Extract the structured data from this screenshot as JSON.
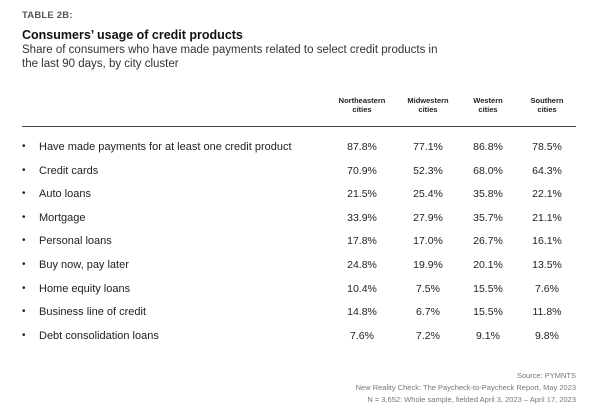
{
  "table_label": "TABLE 2B:",
  "title": "Consumers’ usage of credit products",
  "subtitle": "Share of consumers who have made payments related to select credit products in the last 90 days, by city cluster",
  "columns": [
    {
      "line1": "Northeastern",
      "line2": "cities"
    },
    {
      "line1": "Midwestern",
      "line2": "cities"
    },
    {
      "line1": "Western",
      "line2": "cities"
    },
    {
      "line1": "Southern",
      "line2": "cities"
    }
  ],
  "bullet": "•",
  "rows": [
    {
      "label": "Have made payments for at least one credit product",
      "values": [
        "87.8%",
        "77.1%",
        "86.8%",
        "78.5%"
      ]
    },
    {
      "label": "Credit cards",
      "values": [
        "70.9%",
        "52.3%",
        "68.0%",
        "64.3%"
      ]
    },
    {
      "label": "Auto loans",
      "values": [
        "21.5%",
        "25.4%",
        "35.8%",
        "22.1%"
      ]
    },
    {
      "label": "Mortgage",
      "values": [
        "33.9%",
        "27.9%",
        "35.7%",
        "21.1%"
      ]
    },
    {
      "label": "Personal loans",
      "values": [
        "17.8%",
        "17.0%",
        "26.7%",
        "16.1%"
      ]
    },
    {
      "label": "Buy now, pay later",
      "values": [
        "24.8%",
        "19.9%",
        "20.1%",
        "13.5%"
      ]
    },
    {
      "label": "Home equity loans",
      "values": [
        "10.4%",
        "7.5%",
        "15.5%",
        "7.6%"
      ]
    },
    {
      "label": "Business line of credit",
      "values": [
        "14.8%",
        "6.7%",
        "15.5%",
        "11.8%"
      ]
    },
    {
      "label": "Debt consolidation loans",
      "values": [
        "7.6%",
        "7.2%",
        "9.1%",
        "9.8%"
      ]
    }
  ],
  "source": {
    "line1": "Source: PYMNTS",
    "line2": "New Reality Check: The Paycheck-to-Paycheck Report, May 2023",
    "line3": "N = 3,652: Whole sample, fielded April 3, 2023 – April 17, 2023"
  }
}
